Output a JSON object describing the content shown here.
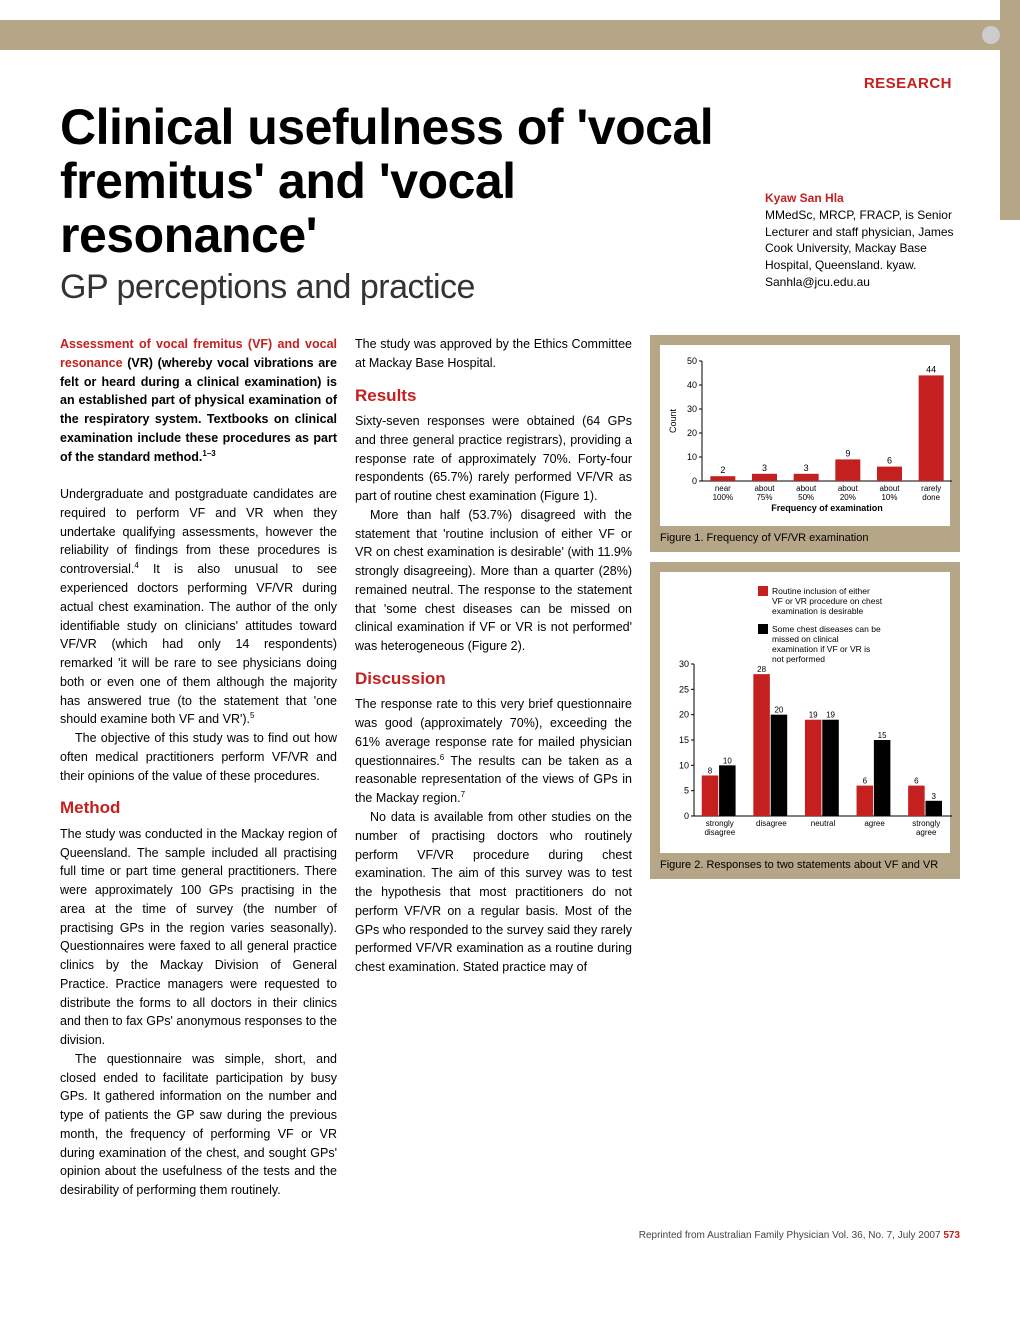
{
  "header": {
    "section_label": "RESEARCH",
    "title": "Clinical usefulness of 'vocal fremitus' and 'vocal resonance'",
    "subtitle": "GP perceptions and practice"
  },
  "author": {
    "name": "Kyaw San Hla",
    "credentials": "MMedSc, MRCP, FRACP, is Senior Lecturer and staff physician, James Cook University, Mackay Base Hospital, Queensland. kyaw. Sanhla@jcu.edu.au"
  },
  "intro": {
    "red_lead": "Assessment of vocal fremitus (VF) and vocal resonance",
    "rest": "(VR) (whereby vocal vibrations are felt or heard during a clinical examination) is an established part of physical examination of the respiratory system. Textbooks on clinical examination include these procedures as part of the standard method.",
    "sup": "1–3"
  },
  "body": {
    "p1": "Undergraduate and postgraduate candidates are required to perform VF and VR when they undertake qualifying assessments, however the reliability of findings from these procedures is controversial.",
    "p1_sup": "4",
    "p1b": " It is also unusual to see experienced doctors performing VF/VR during actual chest examination. The author of the only identifiable study on clinicians' attitudes toward VF/VR (which had only 14 respondents) remarked 'it will be rare to see physicians doing both or even one of them although the majority has answered true (to the statement that 'one should examine both VF and VR').",
    "p1b_sup": "5",
    "p2": "The objective of this study was to find out how often medical practitioners perform VF/VR and their opinions of the value of these procedures.",
    "method_head": "Method",
    "method1": "The study was conducted in the Mackay region of Queensland. The sample included all practising full time or part time general practitioners. There were approximately 100 GPs practising in the area at the time of survey (the number of practising GPs in the region varies seasonally). Questionnaires were faxed to all general practice clinics by the Mackay Division of General Practice. Practice managers were requested to distribute the forms to all doctors in their clinics and then to fax GPs' anonymous responses to the division.",
    "method2": "The questionnaire was simple, short, and closed ended to facilitate participation by busy GPs. It gathered information on the number and type of patients the GP saw during the previous month, the frequency of performing VF or VR during examination of the chest, and sought GPs' opinion about the usefulness of the tests and the desirability of performing them routinely.",
    "ethics": "The study was approved by the Ethics Committee at Mackay Base Hospital.",
    "results_head": "Results",
    "results1": "Sixty-seven responses were obtained (64 GPs and three general practice registrars), providing a response rate of approximately 70%. Forty-four respondents (65.7%) rarely performed VF/VR as part of routine chest examination (Figure 1).",
    "results2": "More than half (53.7%) disagreed with the statement that 'routine inclusion of either VF or VR on chest examination is desirable' (with 11.9% strongly disagreeing). More than a quarter (28%) remained neutral. The response to the statement that 'some chest diseases can be missed on clinical examination if VF or VR is not performed' was heterogeneous (Figure 2).",
    "discussion_head": "Discussion",
    "disc1": "The response rate to this very brief questionnaire was good (approximately 70%), exceeding the 61% average response rate for mailed physician questionnaires.",
    "disc1_sup": "6",
    "disc1b": " The results can be taken as a reasonable representation of the views of GPs in the Mackay region.",
    "disc1b_sup": "7",
    "disc2": "No data is available from other studies on the number of practising doctors who routinely perform VF/VR procedure during chest examination. The aim of this survey was to test the hypothesis that most practitioners do not perform VF/VR on a regular basis. Most of the GPs who responded to the survey said they rarely performed VF/VR examination as a routine during chest examination. Stated practice may of"
  },
  "figure1": {
    "caption": "Figure 1. Frequency of VF/VR examination",
    "ylabel": "Count",
    "xlabel": "Frequency of examination",
    "categories": [
      "near 100%",
      "about 75%",
      "about 50%",
      "about 20%",
      "about 10%",
      "rarely done"
    ],
    "values": [
      2,
      3,
      3,
      9,
      6,
      44
    ],
    "ylim": [
      0,
      50
    ],
    "ytick_step": 10,
    "bar_color": "#c42020",
    "background": "#ffffff"
  },
  "figure2": {
    "caption": "Figure 2. Responses to two statements about VF and VR",
    "categories": [
      "strongly disagree",
      "disagree",
      "neutral",
      "agree",
      "strongly agree"
    ],
    "series": [
      {
        "label": "Routine inclusion of either VF or VR procedure on chest examination is desirable",
        "color": "#c42020",
        "values": [
          8,
          28,
          19,
          6,
          6
        ]
      },
      {
        "label": "Some chest diseases can be missed on clinical examination if VF or VR is not performed",
        "color": "#000000",
        "values": [
          10,
          20,
          19,
          15,
          3
        ]
      }
    ],
    "ylim": [
      0,
      30
    ],
    "ytick_step": 5,
    "background": "#ffffff"
  },
  "footer": {
    "text": "Reprinted from Australian Family Physician Vol. 36, No. 7, July 2007",
    "page": "573"
  }
}
